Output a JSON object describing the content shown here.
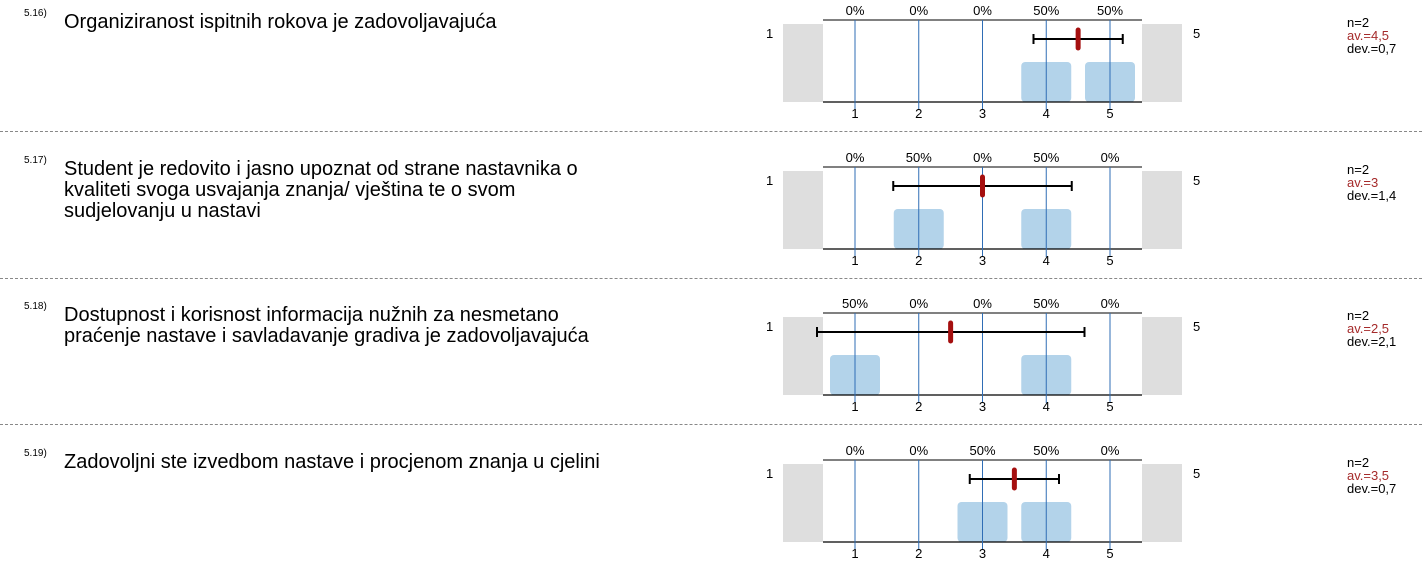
{
  "questions": [
    {
      "number": "5.16)",
      "text": "Organiziranost ispitnih rokova je zadovoljavajuća",
      "left_label": "1",
      "right_label": "5",
      "n": "n=2",
      "av": "av.=4,5",
      "dev": "dev.=0,7"
    },
    {
      "number": "5.17)",
      "text": "Student je redovito i jasno upoznat od strane nastavnika o kvaliteti svoga usvajanja znanja/ vještina te o svom sudjelovanju u nastavi",
      "left_label": "1",
      "right_label": "5",
      "n": "n=2",
      "av": "av.=3",
      "dev": "dev.=1,4"
    },
    {
      "number": "5.18)",
      "text": "Dostupnost i korisnost informacija nužnih za nesmetano praćenje nastave i savladavanje gradiva je zadovoljavajuća",
      "left_label": "1",
      "right_label": "5",
      "n": "n=2",
      "av": "av.=2,5",
      "dev": "dev.=2,1"
    },
    {
      "number": "5.19)",
      "text": "Zadovoljni ste  izvedbom nastave i procjenom znanja u cjelini",
      "left_label": "1",
      "right_label": "5",
      "n": "n=2",
      "av": "av.=3,5",
      "dev": "dev.=0,7"
    }
  ],
  "colors": {
    "bar": "#b3d3ea",
    "gridline": "#2f6db5",
    "mean_marker": "#a50f0f",
    "side_block": "#dedede",
    "av_text": "#a52a2a"
  },
  "chart_data": [
    {
      "type": "bar",
      "categories": [
        "1",
        "2",
        "3",
        "4",
        "5"
      ],
      "values": [
        0,
        0,
        0,
        50,
        50
      ],
      "percent_labels": [
        "0%",
        "0%",
        "0%",
        "50%",
        "50%"
      ],
      "mean": 4.5,
      "dev": 0.7,
      "n": 2,
      "ylim": [
        0,
        100
      ]
    },
    {
      "type": "bar",
      "categories": [
        "1",
        "2",
        "3",
        "4",
        "5"
      ],
      "values": [
        0,
        50,
        0,
        50,
        0
      ],
      "percent_labels": [
        "0%",
        "50%",
        "0%",
        "50%",
        "0%"
      ],
      "mean": 3,
      "dev": 1.4,
      "n": 2,
      "ylim": [
        0,
        100
      ]
    },
    {
      "type": "bar",
      "categories": [
        "1",
        "2",
        "3",
        "4",
        "5"
      ],
      "values": [
        50,
        0,
        0,
        50,
        0
      ],
      "percent_labels": [
        "50%",
        "0%",
        "0%",
        "50%",
        "0%"
      ],
      "mean": 2.5,
      "dev": 2.1,
      "n": 2,
      "ylim": [
        0,
        100
      ]
    },
    {
      "type": "bar",
      "categories": [
        "1",
        "2",
        "3",
        "4",
        "5"
      ],
      "values": [
        0,
        0,
        50,
        50,
        0
      ],
      "percent_labels": [
        "0%",
        "0%",
        "50%",
        "50%",
        "0%"
      ],
      "mean": 3.5,
      "dev": 0.7,
      "n": 2,
      "ylim": [
        0,
        100
      ]
    }
  ]
}
